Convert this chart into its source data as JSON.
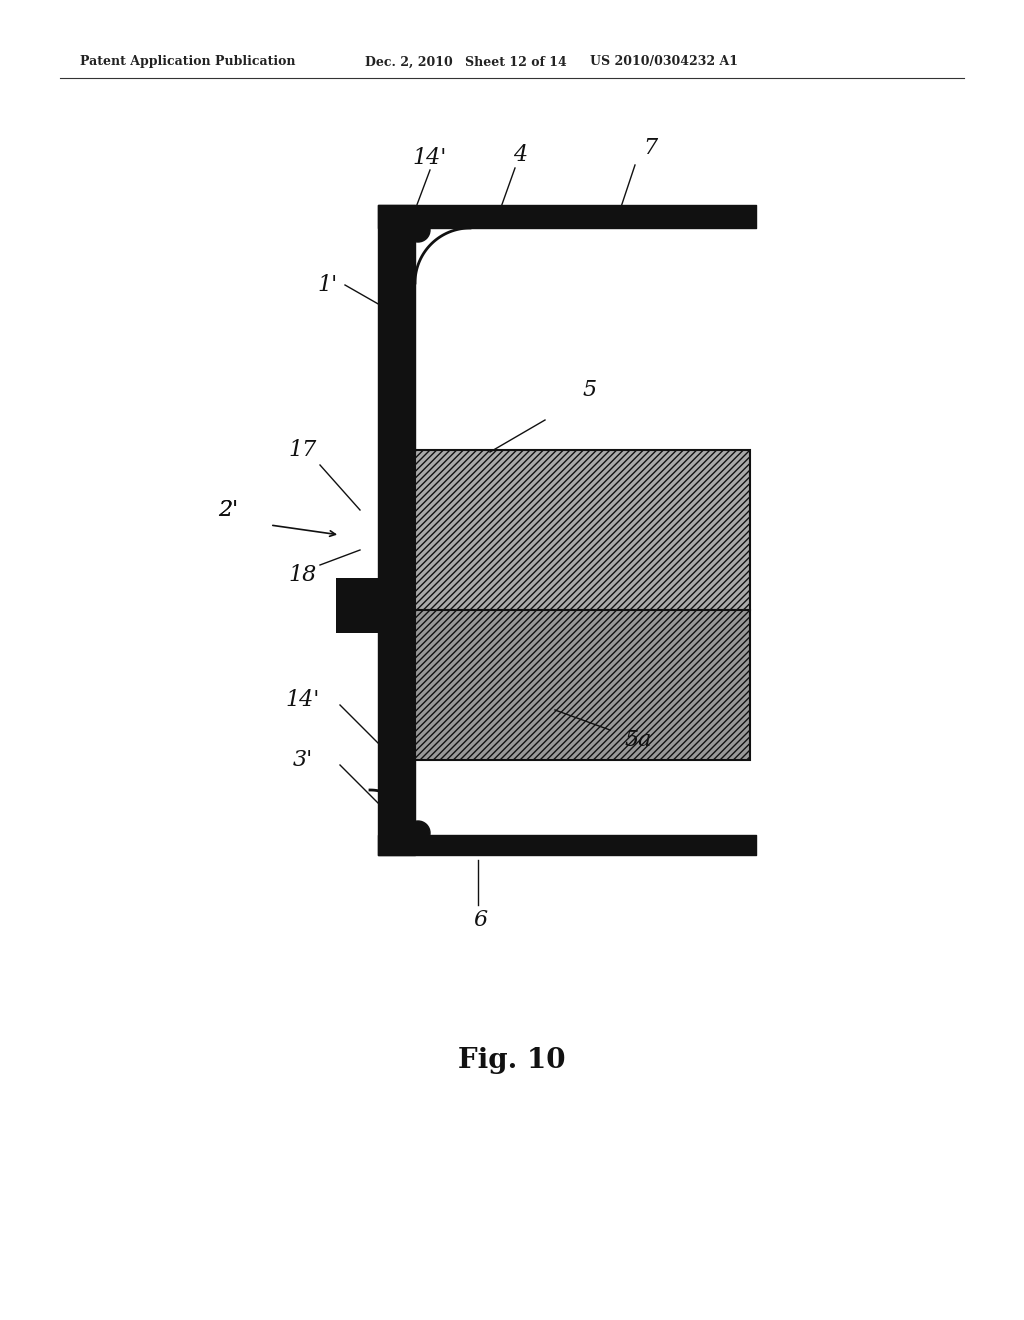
{
  "bg_color": "#ffffff",
  "header_text": "Patent Application Publication",
  "header_date": "Dec. 2, 2010",
  "header_sheet": "Sheet 12 of 14",
  "header_patent": "US 2010/0304232 A1",
  "fig_label": "Fig. 10",
  "line_color": "#111111",
  "fill_color": "#888888",
  "hatch_color": "#555555",
  "thick_lw": 12,
  "medium_lw": 6
}
